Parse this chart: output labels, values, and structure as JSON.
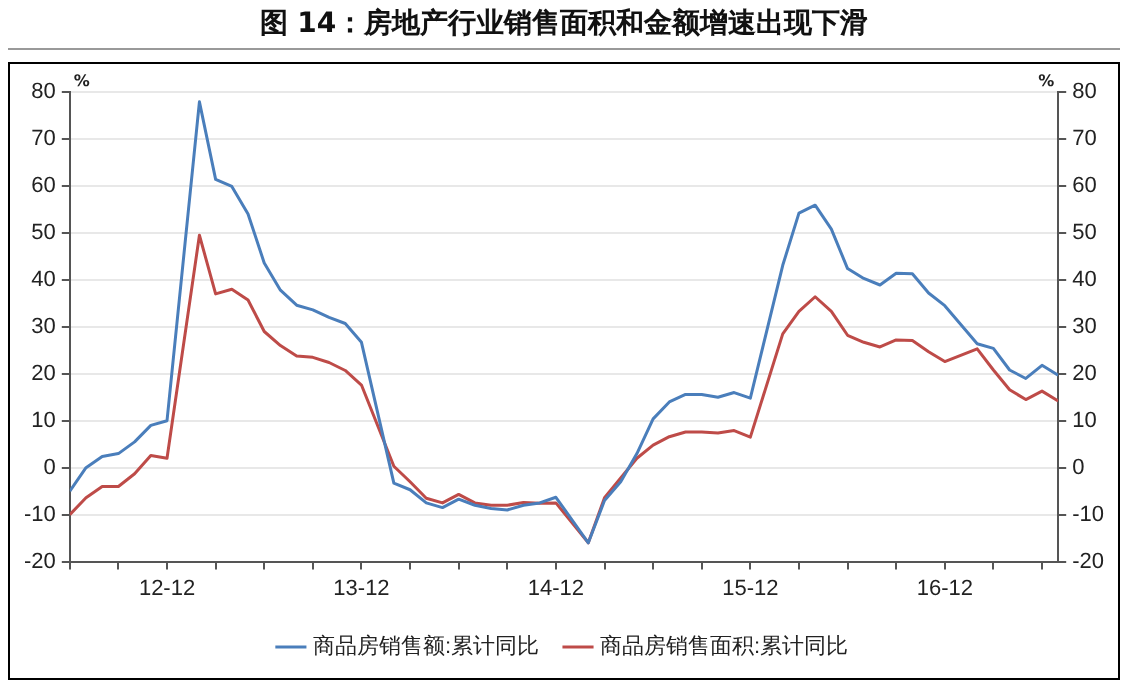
{
  "chart_data": {
    "type": "line",
    "title": "图 14：房地产行业销售面积和金额增速出现下滑",
    "ylabel": "%",
    "y2label": "%",
    "x": [
      "2012-06",
      "2012-07",
      "2012-08",
      "2012-09",
      "2012-10",
      "2012-11",
      "2012-12",
      "2013-02",
      "2013-03",
      "2013-04",
      "2013-05",
      "2013-06",
      "2013-07",
      "2013-08",
      "2013-09",
      "2013-10",
      "2013-11",
      "2013-12",
      "2014-02",
      "2014-03",
      "2014-04",
      "2014-05",
      "2014-06",
      "2014-07",
      "2014-08",
      "2014-09",
      "2014-10",
      "2014-11",
      "2014-12",
      "2015-02",
      "2015-03",
      "2015-04",
      "2015-05",
      "2015-06",
      "2015-07",
      "2015-08",
      "2015-09",
      "2015-10",
      "2015-11",
      "2015-12",
      "2016-02",
      "2016-03",
      "2016-04",
      "2016-05",
      "2016-06",
      "2016-07",
      "2016-08",
      "2016-09",
      "2016-10",
      "2016-11",
      "2016-12",
      "2017-02",
      "2017-03",
      "2017-04",
      "2017-05",
      "2017-06",
      "2017-07"
    ],
    "series": [
      {
        "name": "商品房销售额:累计同比",
        "color": "#4a7ebb",
        "values": [
          -5,
          0,
          2.4,
          3,
          5.5,
          9,
          10,
          77.9,
          61.4,
          59.9,
          54,
          43.6,
          37.8,
          34.6,
          33.6,
          32,
          30.7,
          26.7,
          -3.3,
          -4.7,
          -7.5,
          -8.5,
          -6.7,
          -8,
          -8.7,
          -9,
          -8,
          -7.5,
          -6.3,
          -16,
          -7,
          -3,
          3,
          10.4,
          14,
          15.6,
          15.6,
          15,
          16,
          14.8,
          43.1,
          54.2,
          55.9,
          50.8,
          42.4,
          40.3,
          38.9,
          41.4,
          41.3,
          37.2,
          34.5,
          26.4,
          25.4,
          20.8,
          19,
          21.8,
          19.7
        ]
      },
      {
        "name": "商品房销售面积:累计同比",
        "color": "#be4b48",
        "values": [
          -10,
          -6.4,
          -4,
          -4,
          -1.3,
          2.6,
          2,
          49.5,
          37,
          38,
          35.7,
          29,
          26,
          23.8,
          23.5,
          22.4,
          20.7,
          17.6,
          0.3,
          -3,
          -6.5,
          -7.5,
          -5.7,
          -7.5,
          -8,
          -8,
          -7.4,
          -7.6,
          -7.5,
          -16,
          -6.4,
          -2.2,
          2,
          4.8,
          6.6,
          7.6,
          7.6,
          7.4,
          7.9,
          6.5,
          28.5,
          33.3,
          36.4,
          33.3,
          28.2,
          26.7,
          25.7,
          27.2,
          27.1,
          24.7,
          22.6,
          25.3,
          20.8,
          16.6,
          14.5,
          16.3,
          14.2
        ]
      }
    ],
    "xlim": [
      "2012-06",
      "2017-07"
    ],
    "xticks": [
      {
        "value": "2012-06",
        "label": null
      },
      {
        "value": "2012-09",
        "label": null
      },
      {
        "value": "2012-12",
        "label": "12-12"
      },
      {
        "value": "2013-03",
        "label": null
      },
      {
        "value": "2013-06",
        "label": null
      },
      {
        "value": "2013-09",
        "label": null
      },
      {
        "value": "2013-12",
        "label": "13-12"
      },
      {
        "value": "2014-03",
        "label": null
      },
      {
        "value": "2014-06",
        "label": null
      },
      {
        "value": "2014-09",
        "label": null
      },
      {
        "value": "2014-12",
        "label": "14-12"
      },
      {
        "value": "2015-03",
        "label": null
      },
      {
        "value": "2015-06",
        "label": null
      },
      {
        "value": "2015-09",
        "label": null
      },
      {
        "value": "2015-12",
        "label": "15-12"
      },
      {
        "value": "2016-03",
        "label": null
      },
      {
        "value": "2016-06",
        "label": null
      },
      {
        "value": "2016-09",
        "label": null
      },
      {
        "value": "2016-12",
        "label": "16-12"
      },
      {
        "value": "2017-03",
        "label": null
      },
      {
        "value": "2017-06",
        "label": null
      }
    ],
    "ylim": [
      -20,
      80
    ],
    "yticks": [
      -20,
      -10,
      0,
      10,
      20,
      30,
      40,
      50,
      60,
      70,
      80
    ],
    "y2lim": [
      -20,
      80
    ],
    "y2ticks": [
      -20,
      -10,
      0,
      10,
      20,
      30,
      40,
      50,
      60,
      70,
      80
    ],
    "grid": "y",
    "legend": "bottom",
    "marker": "none",
    "line_style": "solid"
  }
}
